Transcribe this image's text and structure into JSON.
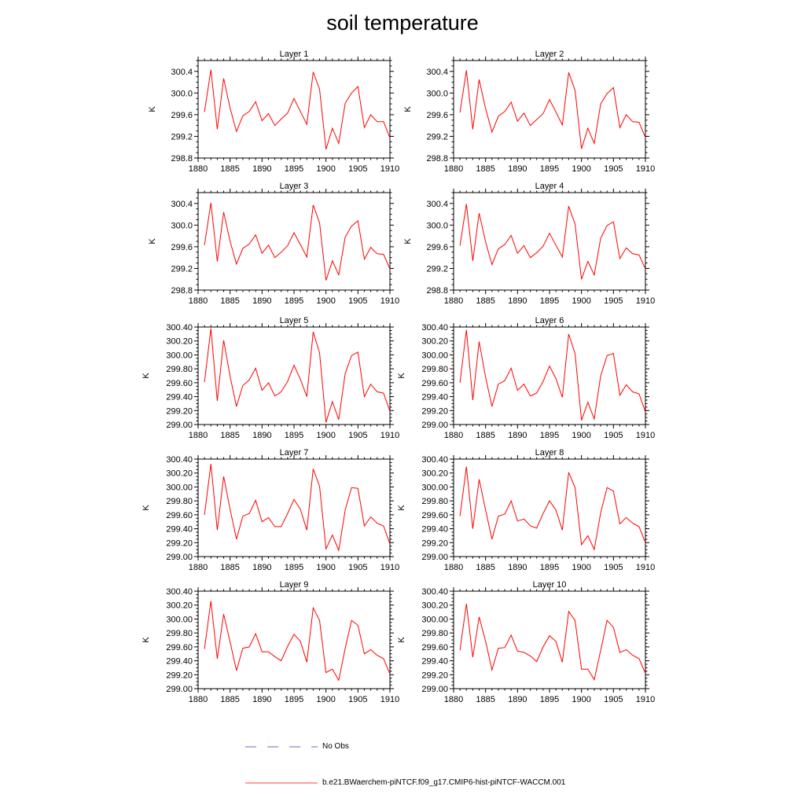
{
  "title": "soil temperature",
  "legend": [
    {
      "label": "No Obs",
      "color": "#3a3aa8",
      "style": "dashed"
    },
    {
      "label": "b.e21.BWaerchem-piNTCF.f09_g17.CMIP6-hist-piNTCF-WACCM.001",
      "color": "#ff0000",
      "style": "solid"
    }
  ],
  "chart_data": [
    {
      "type": "line",
      "title": "Layer 1",
      "ylabel": "K",
      "xlim": [
        1880,
        1910
      ],
      "ylim": [
        298.8,
        300.6
      ],
      "xticks": [
        "1880",
        "1885",
        "1890",
        "1895",
        "1900",
        "1905",
        "1910"
      ],
      "yticks": [
        "298.8",
        "299.2",
        "299.6",
        "300.0",
        "300.4"
      ],
      "series": [
        {
          "color": "#ff0000",
          "x": [
            1881,
            1882,
            1883,
            1884,
            1885,
            1886,
            1887,
            1888,
            1889,
            1890,
            1891,
            1892,
            1893,
            1894,
            1895,
            1896,
            1897,
            1898,
            1899,
            1900,
            1901,
            1902,
            1903,
            1904,
            1905,
            1906,
            1907,
            1908,
            1909,
            1910
          ],
          "values": [
            299.65,
            300.43,
            299.33,
            300.27,
            299.72,
            299.29,
            299.58,
            299.66,
            299.84,
            299.49,
            299.62,
            299.4,
            299.52,
            299.63,
            299.9,
            299.66,
            299.42,
            300.39,
            300.07,
            298.96,
            299.35,
            299.07,
            299.81,
            300.0,
            300.12,
            299.36,
            299.6,
            299.47,
            299.47,
            299.17
          ]
        }
      ]
    },
    {
      "type": "line",
      "title": "Layer 2",
      "ylabel": "K",
      "xlim": [
        1880,
        1910
      ],
      "ylim": [
        298.8,
        300.6
      ],
      "xticks": [
        "1880",
        "1885",
        "1890",
        "1895",
        "1900",
        "1905",
        "1910"
      ],
      "yticks": [
        "298.8",
        "299.2",
        "299.6",
        "300.0",
        "300.4"
      ],
      "series": [
        {
          "color": "#ff0000",
          "x": [
            1881,
            1882,
            1883,
            1884,
            1885,
            1886,
            1887,
            1888,
            1889,
            1890,
            1891,
            1892,
            1893,
            1894,
            1895,
            1896,
            1897,
            1898,
            1899,
            1900,
            1901,
            1902,
            1903,
            1904,
            1905,
            1906,
            1907,
            1908,
            1909,
            1910
          ],
          "values": [
            299.64,
            300.42,
            299.33,
            300.25,
            299.71,
            299.28,
            299.57,
            299.66,
            299.83,
            299.48,
            299.63,
            299.4,
            299.51,
            299.62,
            299.88,
            299.65,
            299.41,
            300.38,
            300.05,
            298.97,
            299.35,
            299.07,
            299.8,
            299.99,
            300.1,
            299.36,
            299.6,
            299.47,
            299.46,
            299.18
          ]
        }
      ]
    },
    {
      "type": "line",
      "title": "Layer 3",
      "ylabel": "K",
      "xlim": [
        1880,
        1910
      ],
      "ylim": [
        298.8,
        300.6
      ],
      "xticks": [
        "1880",
        "1885",
        "1890",
        "1895",
        "1900",
        "1905",
        "1910"
      ],
      "yticks": [
        "298.8",
        "299.2",
        "299.6",
        "300.0",
        "300.4"
      ],
      "series": [
        {
          "color": "#ff0000",
          "x": [
            1881,
            1882,
            1883,
            1884,
            1885,
            1886,
            1887,
            1888,
            1889,
            1890,
            1891,
            1892,
            1893,
            1894,
            1895,
            1896,
            1897,
            1898,
            1899,
            1900,
            1901,
            1902,
            1903,
            1904,
            1905,
            1906,
            1907,
            1908,
            1909,
            1910
          ],
          "values": [
            299.63,
            300.41,
            299.33,
            300.24,
            299.7,
            299.28,
            299.57,
            299.65,
            299.82,
            299.48,
            299.63,
            299.4,
            299.5,
            299.62,
            299.86,
            299.64,
            299.41,
            300.37,
            300.04,
            298.98,
            299.34,
            299.08,
            299.78,
            299.98,
            300.08,
            299.37,
            299.59,
            299.47,
            299.46,
            299.19
          ]
        }
      ]
    },
    {
      "type": "line",
      "title": "Layer 4",
      "ylabel": "K",
      "xlim": [
        1880,
        1910
      ],
      "ylim": [
        298.8,
        300.6
      ],
      "xticks": [
        "1880",
        "1885",
        "1890",
        "1895",
        "1900",
        "1905",
        "1910"
      ],
      "yticks": [
        "298.8",
        "299.2",
        "299.6",
        "300.0",
        "300.4"
      ],
      "series": [
        {
          "color": "#ff0000",
          "x": [
            1881,
            1882,
            1883,
            1884,
            1885,
            1886,
            1887,
            1888,
            1889,
            1890,
            1891,
            1892,
            1893,
            1894,
            1895,
            1896,
            1897,
            1898,
            1899,
            1900,
            1901,
            1902,
            1903,
            1904,
            1905,
            1906,
            1907,
            1908,
            1909,
            1910
          ],
          "values": [
            299.62,
            300.39,
            299.34,
            300.22,
            299.69,
            299.27,
            299.56,
            299.64,
            299.81,
            299.48,
            299.62,
            299.4,
            299.49,
            299.61,
            299.85,
            299.63,
            299.41,
            300.35,
            300.02,
            299.0,
            299.33,
            299.08,
            299.76,
            299.99,
            300.06,
            299.38,
            299.58,
            299.47,
            299.45,
            299.19
          ]
        }
      ]
    },
    {
      "type": "line",
      "title": "Layer 5",
      "ylabel": "K",
      "xlim": [
        1880,
        1910
      ],
      "ylim": [
        299.0,
        300.4
      ],
      "xticks": [
        "1880",
        "1885",
        "1890",
        "1895",
        "1900",
        "1905",
        "1910"
      ],
      "yticks": [
        "299.00",
        "299.20",
        "299.40",
        "299.60",
        "299.80",
        "300.00",
        "300.20",
        "300.40"
      ],
      "series": [
        {
          "color": "#ff0000",
          "x": [
            1881,
            1882,
            1883,
            1884,
            1885,
            1886,
            1887,
            1888,
            1889,
            1890,
            1891,
            1892,
            1893,
            1894,
            1895,
            1896,
            1897,
            1898,
            1899,
            1900,
            1901,
            1902,
            1903,
            1904,
            1905,
            1906,
            1907,
            1908,
            1909,
            1910
          ],
          "values": [
            299.61,
            300.38,
            299.34,
            300.21,
            299.69,
            299.26,
            299.56,
            299.64,
            299.81,
            299.49,
            299.6,
            299.41,
            299.47,
            299.62,
            299.85,
            299.65,
            299.4,
            300.33,
            300.03,
            299.03,
            299.33,
            299.07,
            299.73,
            299.99,
            300.04,
            299.4,
            299.58,
            299.47,
            299.45,
            299.19
          ]
        }
      ]
    },
    {
      "type": "line",
      "title": "Layer 6",
      "ylabel": "K",
      "xlim": [
        1880,
        1910
      ],
      "ylim": [
        299.0,
        300.4
      ],
      "xticks": [
        "1880",
        "1885",
        "1890",
        "1895",
        "1900",
        "1905",
        "1910"
      ],
      "yticks": [
        "299.00",
        "299.20",
        "299.40",
        "299.60",
        "299.80",
        "300.00",
        "300.20",
        "300.40"
      ],
      "series": [
        {
          "color": "#ff0000",
          "x": [
            1881,
            1882,
            1883,
            1884,
            1885,
            1886,
            1887,
            1888,
            1889,
            1890,
            1891,
            1892,
            1893,
            1894,
            1895,
            1896,
            1897,
            1898,
            1899,
            1900,
            1901,
            1902,
            1903,
            1904,
            1905,
            1906,
            1907,
            1908,
            1909,
            1910
          ],
          "values": [
            299.6,
            300.36,
            299.35,
            300.19,
            299.68,
            299.26,
            299.58,
            299.63,
            299.81,
            299.49,
            299.58,
            299.41,
            299.45,
            299.62,
            299.84,
            299.66,
            299.39,
            300.3,
            300.02,
            299.06,
            299.32,
            299.08,
            299.7,
            299.99,
            300.02,
            299.42,
            299.57,
            299.47,
            299.44,
            299.18
          ]
        }
      ]
    },
    {
      "type": "line",
      "title": "Layer 7",
      "ylabel": "K",
      "xlim": [
        1880,
        1910
      ],
      "ylim": [
        299.0,
        300.4
      ],
      "xticks": [
        "1880",
        "1885",
        "1890",
        "1895",
        "1900",
        "1905",
        "1910"
      ],
      "yticks": [
        "299.00",
        "299.20",
        "299.40",
        "299.60",
        "299.80",
        "300.00",
        "300.20",
        "300.40"
      ],
      "series": [
        {
          "color": "#ff0000",
          "x": [
            1881,
            1882,
            1883,
            1884,
            1885,
            1886,
            1887,
            1888,
            1889,
            1890,
            1891,
            1892,
            1893,
            1894,
            1895,
            1896,
            1897,
            1898,
            1899,
            1900,
            1901,
            1902,
            1903,
            1904,
            1905,
            1906,
            1907,
            1908,
            1909,
            1910
          ],
          "values": [
            299.6,
            300.33,
            299.38,
            300.15,
            299.68,
            299.25,
            299.58,
            299.62,
            299.81,
            299.5,
            299.56,
            299.43,
            299.43,
            299.62,
            299.82,
            299.68,
            299.38,
            300.26,
            300.01,
            299.11,
            299.31,
            299.09,
            299.67,
            299.99,
            299.98,
            299.44,
            299.57,
            299.48,
            299.44,
            299.18
          ]
        }
      ]
    },
    {
      "type": "line",
      "title": "Layer 8",
      "ylabel": "K",
      "xlim": [
        1880,
        1910
      ],
      "ylim": [
        299.0,
        300.4
      ],
      "xticks": [
        "1880",
        "1885",
        "1890",
        "1895",
        "1900",
        "1905",
        "1910"
      ],
      "yticks": [
        "299.00",
        "299.20",
        "299.40",
        "299.60",
        "299.80",
        "300.00",
        "300.20",
        "300.40"
      ],
      "series": [
        {
          "color": "#ff0000",
          "x": [
            1881,
            1882,
            1883,
            1884,
            1885,
            1886,
            1887,
            1888,
            1889,
            1890,
            1891,
            1892,
            1893,
            1894,
            1895,
            1896,
            1897,
            1898,
            1899,
            1900,
            1901,
            1902,
            1903,
            1904,
            1905,
            1906,
            1907,
            1908,
            1909,
            1910
          ],
          "values": [
            299.58,
            300.29,
            299.4,
            300.11,
            299.67,
            299.25,
            299.58,
            299.61,
            299.8,
            299.51,
            299.54,
            299.44,
            299.41,
            299.62,
            299.8,
            299.67,
            299.38,
            300.21,
            299.99,
            299.17,
            299.3,
            299.1,
            299.63,
            299.99,
            299.94,
            299.47,
            299.56,
            299.48,
            299.43,
            299.2
          ]
        }
      ]
    },
    {
      "type": "line",
      "title": "Layer 9",
      "ylabel": "K",
      "xlim": [
        1880,
        1910
      ],
      "ylim": [
        299.0,
        300.4
      ],
      "xticks": [
        "1880",
        "1885",
        "1890",
        "1895",
        "1900",
        "1905",
        "1910"
      ],
      "yticks": [
        "299.00",
        "299.20",
        "299.40",
        "299.60",
        "299.80",
        "300.00",
        "300.20",
        "300.40"
      ],
      "series": [
        {
          "color": "#ff0000",
          "x": [
            1881,
            1882,
            1883,
            1884,
            1885,
            1886,
            1887,
            1888,
            1889,
            1890,
            1891,
            1892,
            1893,
            1894,
            1895,
            1896,
            1897,
            1898,
            1899,
            1900,
            1901,
            1902,
            1903,
            1904,
            1905,
            1906,
            1907,
            1908,
            1909,
            1910
          ],
          "values": [
            299.57,
            300.26,
            299.43,
            300.07,
            299.67,
            299.26,
            299.58,
            299.6,
            299.79,
            299.53,
            299.53,
            299.46,
            299.4,
            299.61,
            299.78,
            299.68,
            299.38,
            300.16,
            299.98,
            299.23,
            299.28,
            299.12,
            299.58,
            299.98,
            299.91,
            299.5,
            299.56,
            299.48,
            299.43,
            299.21
          ]
        }
      ]
    },
    {
      "type": "line",
      "title": "Layer 10",
      "ylabel": "K",
      "xlim": [
        1880,
        1910
      ],
      "ylim": [
        299.0,
        300.4
      ],
      "xticks": [
        "1880",
        "1885",
        "1890",
        "1895",
        "1900",
        "1905",
        "1910"
      ],
      "yticks": [
        "299.00",
        "299.20",
        "299.40",
        "299.60",
        "299.80",
        "300.00",
        "300.20",
        "300.40"
      ],
      "series": [
        {
          "color": "#ff0000",
          "x": [
            1881,
            1882,
            1883,
            1884,
            1885,
            1886,
            1887,
            1888,
            1889,
            1890,
            1891,
            1892,
            1893,
            1894,
            1895,
            1896,
            1897,
            1898,
            1899,
            1900,
            1901,
            1902,
            1903,
            1904,
            1905,
            1906,
            1907,
            1908,
            1909,
            1910
          ],
          "values": [
            299.55,
            300.22,
            299.45,
            300.03,
            299.68,
            299.27,
            299.58,
            299.59,
            299.77,
            299.54,
            299.52,
            299.47,
            299.39,
            299.6,
            299.76,
            299.68,
            299.38,
            300.11,
            299.98,
            299.28,
            299.28,
            299.13,
            299.55,
            299.98,
            299.88,
            299.52,
            299.56,
            299.48,
            299.43,
            299.22
          ]
        }
      ]
    }
  ]
}
